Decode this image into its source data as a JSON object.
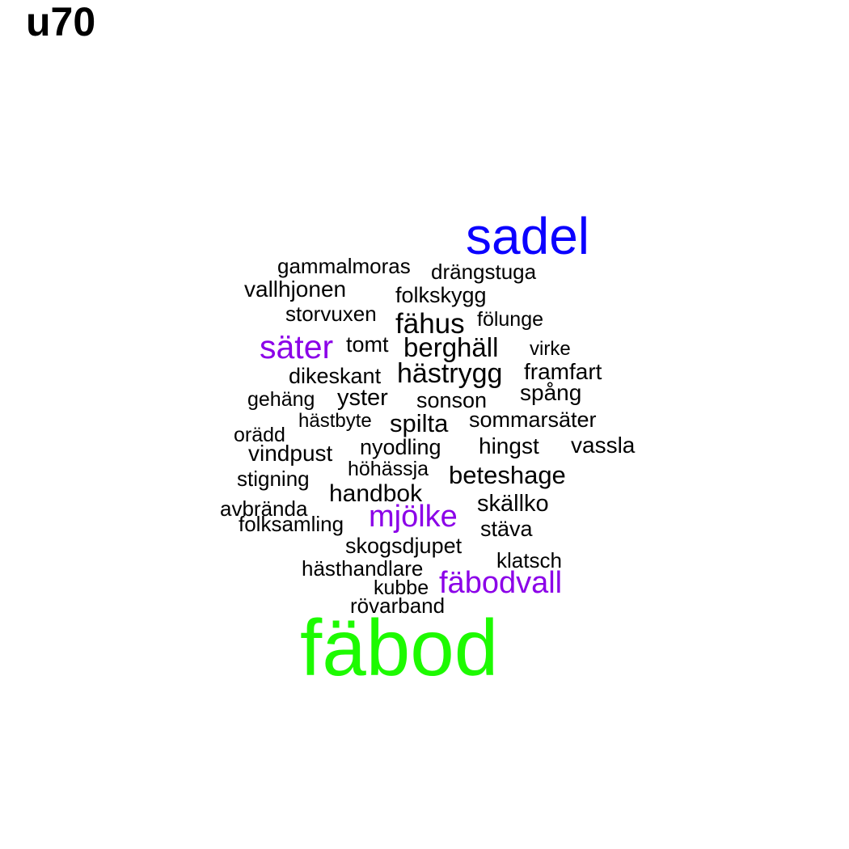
{
  "title": "u70",
  "colors": {
    "tier_top": "#1dfa00",
    "tier_second": "#0b00ff",
    "tier_third": "#8b00e8",
    "tier_base": "#000000"
  },
  "words": [
    {
      "text": "fäbod",
      "tier": "top"
    },
    {
      "text": "sadel",
      "tier": "second"
    },
    {
      "text": "säter",
      "tier": "third"
    },
    {
      "text": "mjölke",
      "tier": "third"
    },
    {
      "text": "fäbodvall",
      "tier": "third"
    },
    {
      "text": "gammalmoras",
      "tier": "base"
    },
    {
      "text": "drängstuga",
      "tier": "base"
    },
    {
      "text": "vallhjonen",
      "tier": "base"
    },
    {
      "text": "folkskygg",
      "tier": "base"
    },
    {
      "text": "storvuxen",
      "tier": "base"
    },
    {
      "text": "fähus",
      "tier": "base"
    },
    {
      "text": "fölunge",
      "tier": "base"
    },
    {
      "text": "tomt",
      "tier": "base"
    },
    {
      "text": "berghäll",
      "tier": "base"
    },
    {
      "text": "virke",
      "tier": "base"
    },
    {
      "text": "dikeskant",
      "tier": "base"
    },
    {
      "text": "hästrygg",
      "tier": "base"
    },
    {
      "text": "framfart",
      "tier": "base"
    },
    {
      "text": "spång",
      "tier": "base"
    },
    {
      "text": "gehäng",
      "tier": "base"
    },
    {
      "text": "yster",
      "tier": "base"
    },
    {
      "text": "sonson",
      "tier": "base"
    },
    {
      "text": "hästbyte",
      "tier": "base"
    },
    {
      "text": "spilta",
      "tier": "base"
    },
    {
      "text": "sommarsäter",
      "tier": "base"
    },
    {
      "text": "orädd",
      "tier": "base"
    },
    {
      "text": "vindpust",
      "tier": "base"
    },
    {
      "text": "nyodling",
      "tier": "base"
    },
    {
      "text": "hingst",
      "tier": "base"
    },
    {
      "text": "vassla",
      "tier": "base"
    },
    {
      "text": "höhässja",
      "tier": "base"
    },
    {
      "text": "stigning",
      "tier": "base"
    },
    {
      "text": "beteshage",
      "tier": "base"
    },
    {
      "text": "handbok",
      "tier": "base"
    },
    {
      "text": "avbrända",
      "tier": "base"
    },
    {
      "text": "skällko",
      "tier": "base"
    },
    {
      "text": "folksamling",
      "tier": "base"
    },
    {
      "text": "stäva",
      "tier": "base"
    },
    {
      "text": "skogsdjupet",
      "tier": "base"
    },
    {
      "text": "klatsch",
      "tier": "base"
    },
    {
      "text": "hästhandlare",
      "tier": "base"
    },
    {
      "text": "kubbe",
      "tier": "base"
    },
    {
      "text": "rövarband",
      "tier": "base"
    }
  ]
}
